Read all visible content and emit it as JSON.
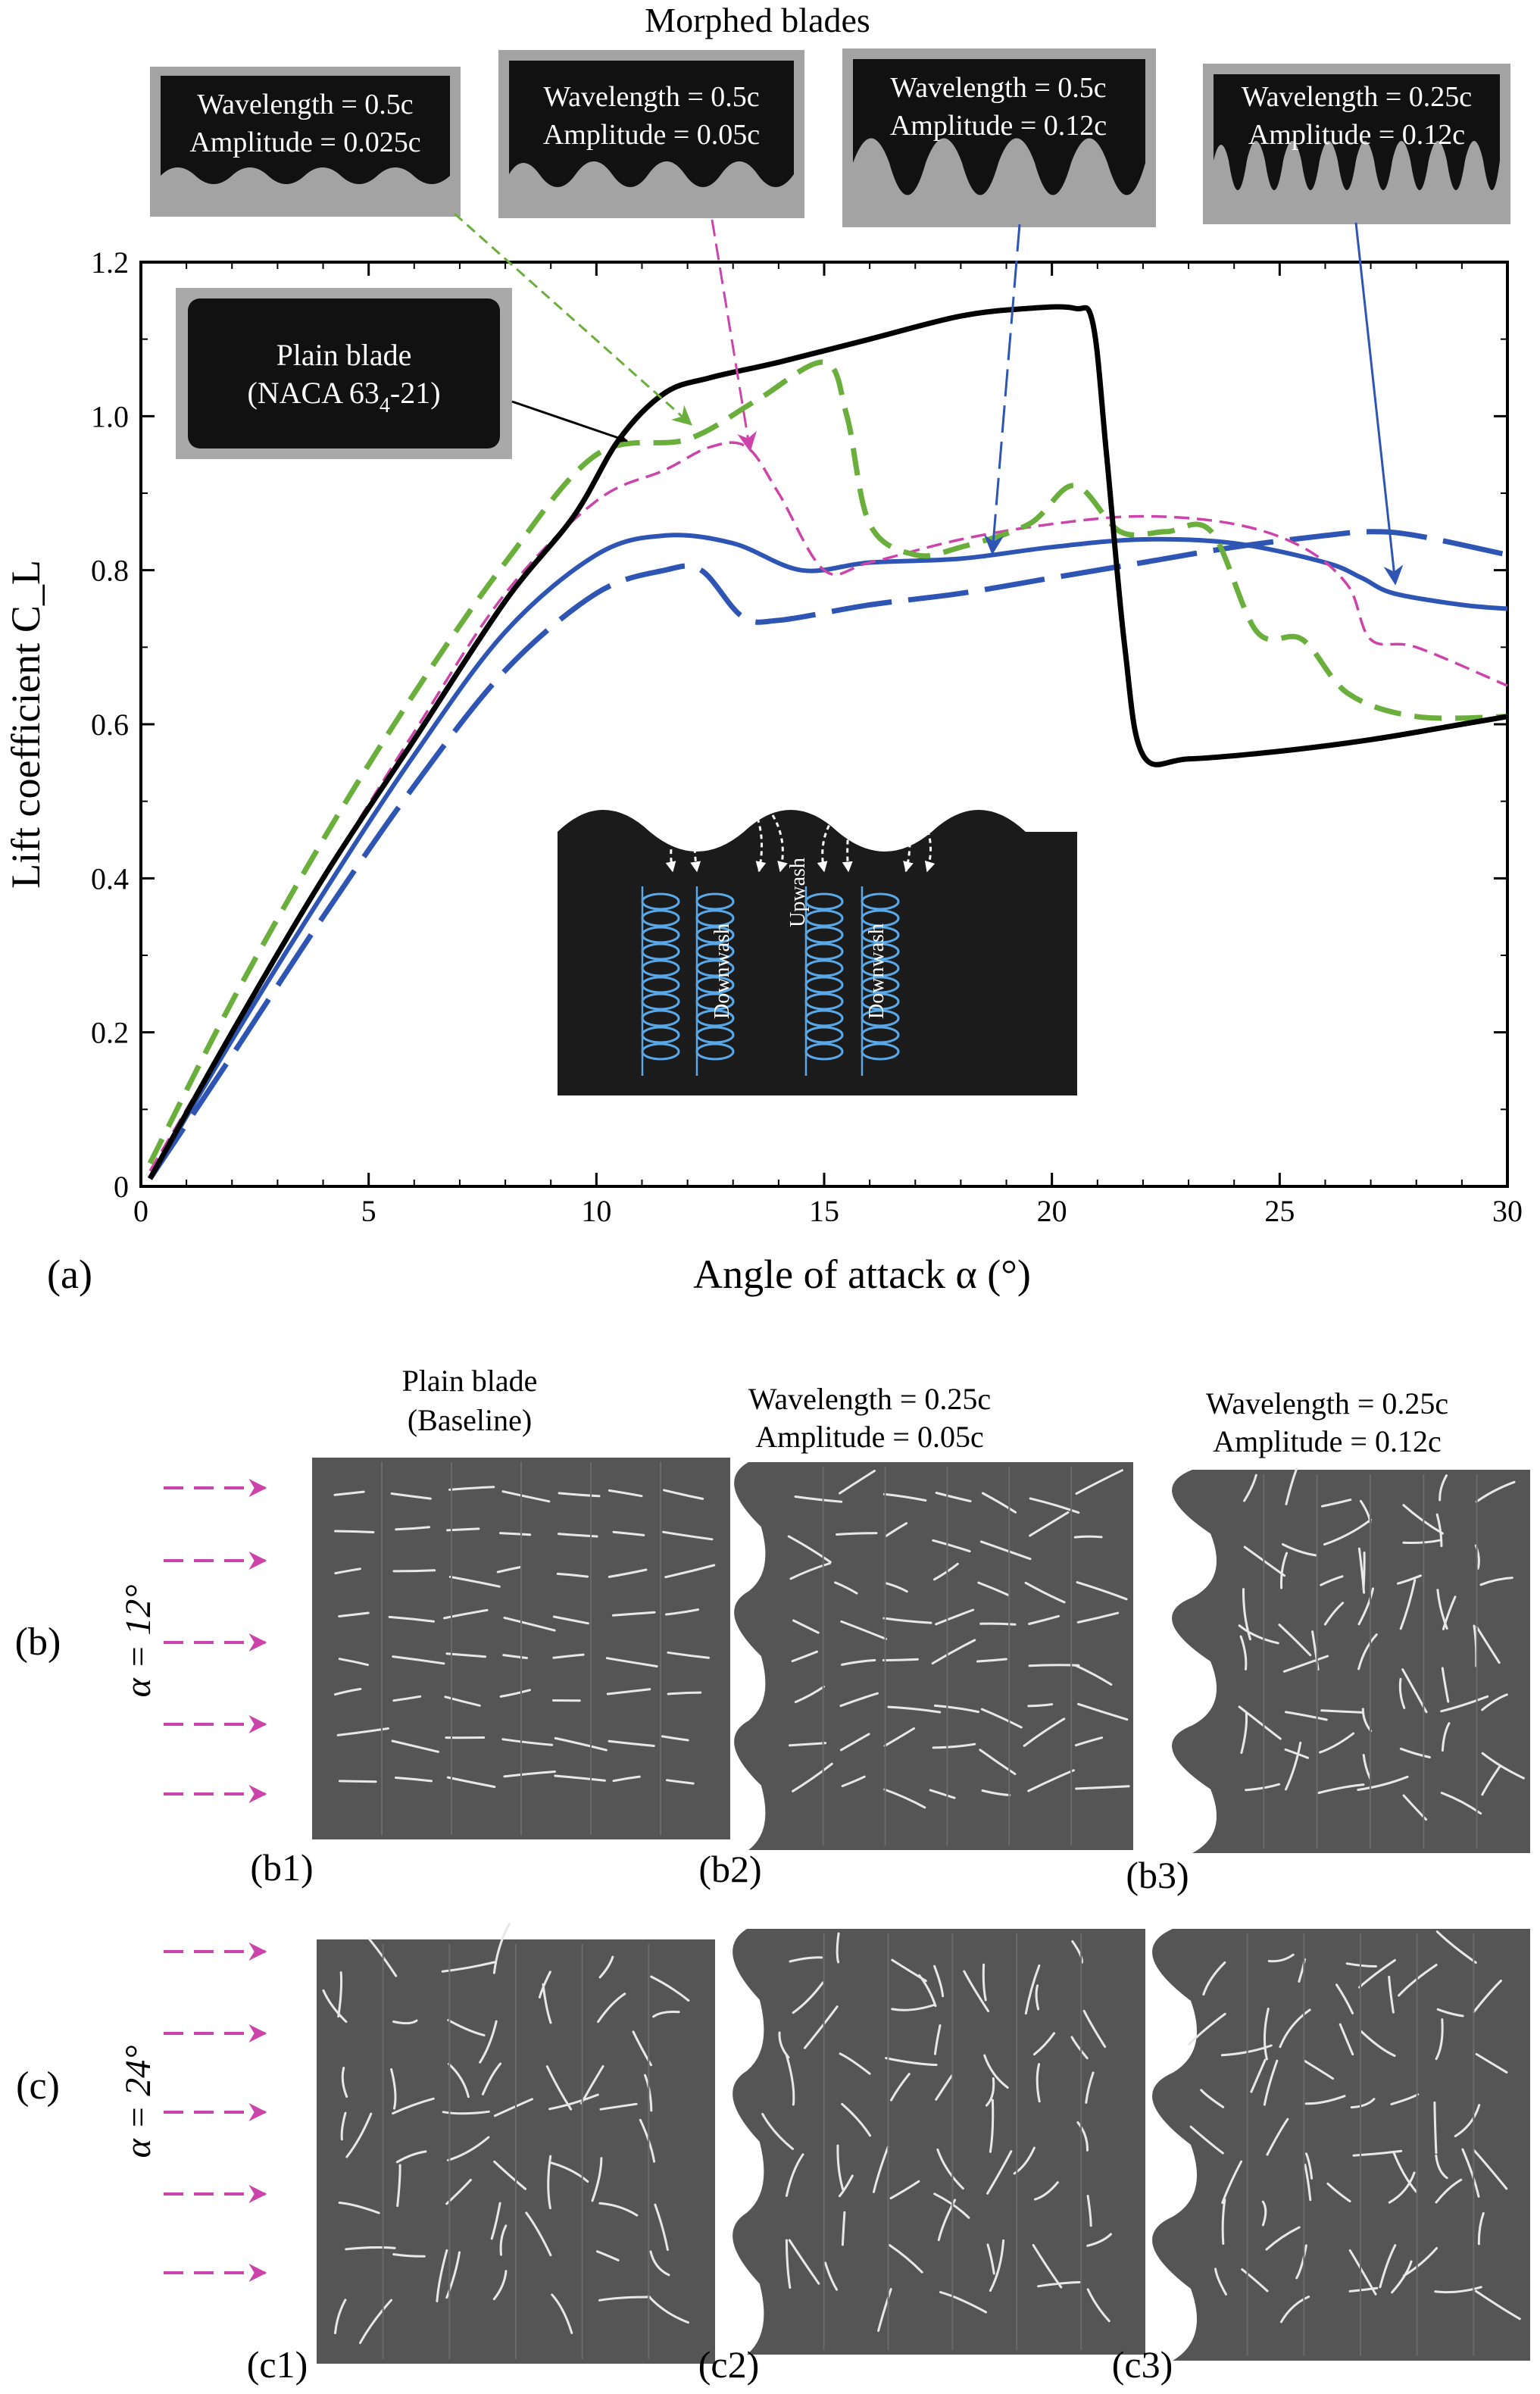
{
  "chart_data": {
    "type": "line",
    "panel_label": "(a)",
    "title": "Morphed blades",
    "xlabel": "Angle of attack α (°)",
    "ylabel": "Lift coefficient C_L",
    "xlim": [
      0,
      30
    ],
    "ylim": [
      0,
      1.2
    ],
    "xticks": [
      "0",
      "5",
      "10",
      "15",
      "20",
      "25",
      "30"
    ],
    "yticks": [
      "0",
      "0.2",
      "0.4",
      "0.6",
      "0.8",
      "1.0",
      "1.2"
    ],
    "grid": false,
    "colors": {
      "black": "#000000",
      "green": "#6aae3c",
      "pink": "#cc44aa",
      "blue": "#2e55b4"
    },
    "series": [
      {
        "name": "Plain blade (NACA 63_4-21)",
        "style": "solid-black",
        "x": [
          0.2,
          2,
          4,
          6,
          8,
          9.5,
          10.5,
          11.5,
          12.5,
          14,
          16,
          18,
          19.5,
          20.5,
          20.9,
          21.2,
          21.6,
          22,
          23,
          25,
          27,
          29,
          30
        ],
        "y": [
          0.01,
          0.2,
          0.4,
          0.58,
          0.76,
          0.87,
          0.97,
          1.03,
          1.05,
          1.07,
          1.1,
          1.13,
          1.14,
          1.14,
          1.12,
          0.95,
          0.7,
          0.56,
          0.555,
          0.565,
          0.58,
          0.6,
          0.61
        ]
      },
      {
        "name": "Wavelength = 0.5c, Amplitude = 0.025c",
        "style": "dashed-green",
        "x": [
          0.2,
          2,
          4,
          6,
          8,
          10,
          12,
          13.5,
          15,
          15.5,
          16,
          17,
          18,
          19.5,
          20.5,
          21.5,
          22.5,
          23.5,
          24.5,
          25.5,
          26.5,
          28,
          30
        ],
        "y": [
          0.03,
          0.24,
          0.45,
          0.64,
          0.81,
          0.95,
          0.97,
          1.02,
          1.07,
          1.0,
          0.86,
          0.82,
          0.83,
          0.86,
          0.91,
          0.85,
          0.85,
          0.85,
          0.72,
          0.71,
          0.64,
          0.61,
          0.61
        ]
      },
      {
        "name": "Wavelength = 0.5c, Amplitude = 0.05c",
        "style": "thin-dashed-pink",
        "x": [
          0.2,
          2,
          4,
          6,
          8,
          10,
          11.5,
          12.5,
          13.3,
          14,
          15,
          16,
          18,
          20,
          22,
          24,
          25.5,
          26.5,
          27,
          28,
          30
        ],
        "y": [
          0.02,
          0.2,
          0.4,
          0.59,
          0.77,
          0.89,
          0.93,
          0.96,
          0.96,
          0.9,
          0.8,
          0.81,
          0.84,
          0.86,
          0.87,
          0.86,
          0.83,
          0.78,
          0.71,
          0.7,
          0.65
        ]
      },
      {
        "name": "Wavelength = 0.5c, Amplitude = 0.12c",
        "style": "solid-blue",
        "x": [
          0.2,
          2,
          4,
          6,
          8,
          10,
          11.5,
          13,
          14.5,
          16,
          18,
          20,
          22,
          24,
          26,
          26.8,
          27.5,
          29,
          30
        ],
        "y": [
          0.01,
          0.19,
          0.38,
          0.56,
          0.72,
          0.82,
          0.845,
          0.835,
          0.8,
          0.81,
          0.815,
          0.83,
          0.84,
          0.835,
          0.81,
          0.79,
          0.77,
          0.755,
          0.75
        ]
      },
      {
        "name": "Wavelength = 0.25c, Amplitude = 0.12c",
        "style": "long-dash-blue",
        "x": [
          0.2,
          2,
          4,
          6,
          8,
          10,
          11.5,
          12.3,
          13.2,
          14,
          16,
          18,
          20,
          22,
          24,
          26,
          27,
          28,
          30
        ],
        "y": [
          0.01,
          0.17,
          0.35,
          0.52,
          0.67,
          0.77,
          0.8,
          0.8,
          0.74,
          0.735,
          0.755,
          0.77,
          0.79,
          0.81,
          0.83,
          0.845,
          0.85,
          0.845,
          0.82
        ]
      }
    ],
    "annotations": {
      "plain_inset": {
        "line1": "Plain blade",
        "line2": "(NACA 63",
        "sub": "4",
        "line2_end": "-21)"
      },
      "morphed_insets": [
        {
          "wavelength": "Wavelength = 0.5c",
          "amplitude": "Amplitude = 0.025c"
        },
        {
          "wavelength": "Wavelength = 0.5c",
          "amplitude": "Amplitude = 0.05c"
        },
        {
          "wavelength": "Wavelength = 0.5c",
          "amplitude": "Amplitude = 0.12c"
        },
        {
          "wavelength": "Wavelength = 0.25c",
          "amplitude": "Amplitude = 0.12c"
        }
      ],
      "flow_inset": {
        "downwash_1": "Downwash",
        "upwash": "Upwash",
        "downwash_2": "Downwash"
      }
    }
  },
  "flow_panels": {
    "columns": [
      {
        "line1": "Plain blade",
        "line2": "(Baseline)"
      },
      {
        "line1": "Wavelength = 0.25c",
        "line2": "Amplitude = 0.05c"
      },
      {
        "line1": "Wavelength = 0.25c",
        "line2": "Amplitude = 0.12c"
      }
    ],
    "rows": [
      {
        "label": "(b)",
        "angle": "α = 12°",
        "panels": [
          "(b1)",
          "(b2)",
          "(b3)"
        ]
      },
      {
        "label": "(c)",
        "angle": "α = 24°",
        "panels": [
          "(c1)",
          "(c2)",
          "(c3)"
        ]
      }
    ]
  }
}
